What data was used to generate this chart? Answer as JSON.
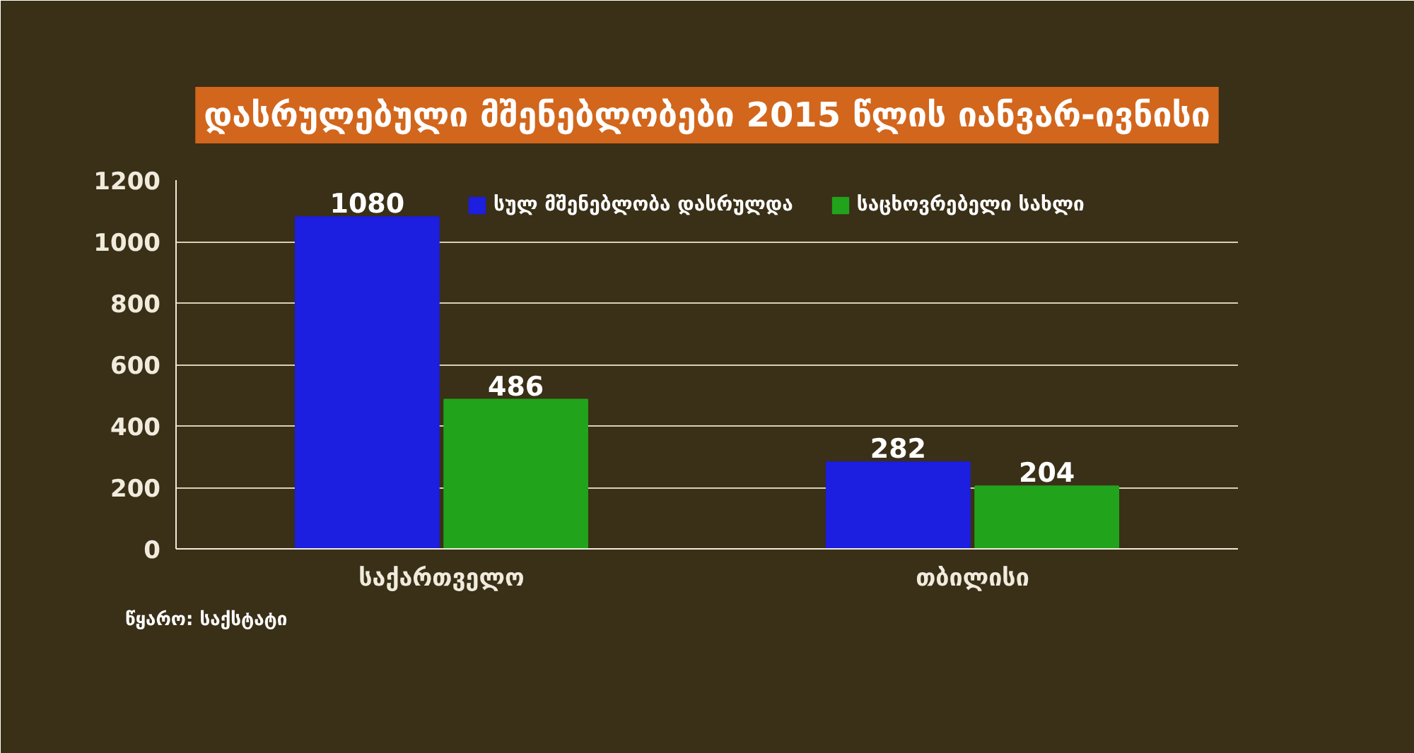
{
  "chart_data": {
    "type": "bar",
    "title": "დასრულებული მშენებლობები 2015 წლის იანვარ-ივნისი",
    "categories": [
      "საქართველო",
      "თბილისი"
    ],
    "series": [
      {
        "name": "სულ მშენებლობა დასრულდა",
        "color": "#1c1ee0",
        "values": [
          1080,
          282
        ]
      },
      {
        "name": "საცხოვრებელი სახლი",
        "color": "#22a31c",
        "values": [
          486,
          204
        ]
      }
    ],
    "ylim": [
      0,
      1200
    ],
    "yticks": [
      0,
      200,
      400,
      600,
      800,
      1000,
      1200
    ],
    "grid": "y",
    "legend": "top",
    "data_labels": true,
    "annotations": [
      "წყარო: საქსტატი"
    ]
  }
}
